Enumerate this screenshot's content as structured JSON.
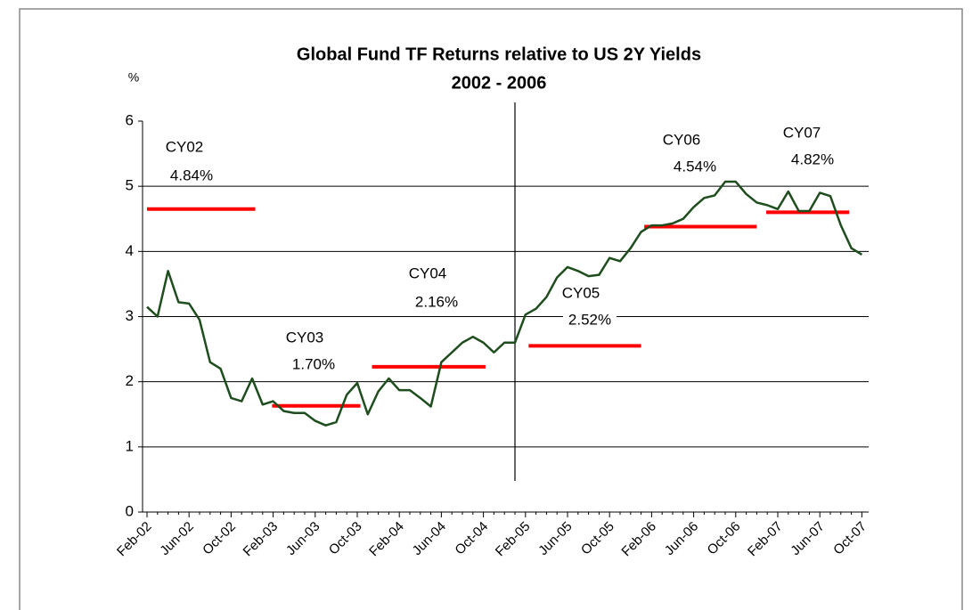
{
  "chart_data": {
    "type": "line",
    "title": "Global Fund TF Returns relative to US 2Y Yields",
    "subtitle": "2002 - 2006",
    "y_label": "%",
    "categories": [
      "Feb-02",
      null,
      null,
      null,
      "Jun-02",
      null,
      null,
      null,
      "Oct-02",
      null,
      null,
      null,
      "Feb-03",
      null,
      null,
      null,
      "Jun-03",
      null,
      null,
      null,
      "Oct-03",
      null,
      null,
      null,
      "Feb-04",
      null,
      null,
      null,
      "Jun-04",
      null,
      null,
      null,
      "Oct-04",
      null,
      null,
      null,
      "Feb-05",
      null,
      null,
      null,
      "Jun-05",
      null,
      null,
      null,
      "Oct-05",
      null,
      null,
      null,
      "Feb-06",
      null,
      null,
      null,
      "Jun-06",
      null,
      null,
      null,
      "Oct-06",
      null,
      null,
      null,
      "Feb-07",
      null,
      null,
      null,
      "Jun-07",
      null,
      null,
      null,
      "Oct-07"
    ],
    "values": [
      3.15,
      3.0,
      3.7,
      3.22,
      3.2,
      2.95,
      2.3,
      2.2,
      1.75,
      1.7,
      2.05,
      1.65,
      1.7,
      1.55,
      1.52,
      1.52,
      1.4,
      1.33,
      1.38,
      1.8,
      1.98,
      1.5,
      1.85,
      2.05,
      1.87,
      1.87,
      1.75,
      1.62,
      2.3,
      2.45,
      2.6,
      2.69,
      2.6,
      2.45,
      2.6,
      2.6,
      3.03,
      3.12,
      3.3,
      3.6,
      3.76,
      3.7,
      3.62,
      3.64,
      3.9,
      3.85,
      4.05,
      4.3,
      4.4,
      4.4,
      4.43,
      4.5,
      4.68,
      4.82,
      4.86,
      5.07,
      5.07,
      4.88,
      4.75,
      4.71,
      4.65,
      4.92,
      4.62,
      4.62,
      4.9,
      4.85,
      4.4,
      4.05,
      3.95
    ],
    "color": "#1e4d1e",
    "ylim": [
      0,
      6
    ],
    "yticks": [
      0,
      1,
      2,
      3,
      4,
      5,
      6
    ],
    "grid": true,
    "averages": {
      "color": "#ff0000",
      "bars": [
        {
          "span": [
            0,
            10.3
          ],
          "value": 4.65
        },
        {
          "span": [
            11.9,
            20.3
          ],
          "value": 1.63
        },
        {
          "span": [
            21.4,
            32.2
          ],
          "value": 2.23
        },
        {
          "span": [
            36.3,
            47
          ],
          "value": 2.55
        },
        {
          "span": [
            47.3,
            58
          ],
          "value": 4.38
        },
        {
          "span": [
            58.9,
            66.8
          ],
          "value": 4.6
        }
      ]
    },
    "annotations": [
      {
        "text": "CY02"
      },
      {
        "text": "4.84%"
      },
      {
        "text": "CY03"
      },
      {
        "text": "1.70%"
      },
      {
        "text": "CY04"
      },
      {
        "text": "2.16%"
      },
      {
        "text": "CY05"
      },
      {
        "text": "2.52%"
      },
      {
        "text": "CY06"
      },
      {
        "text": "4.54%"
      },
      {
        "text": "CY07"
      },
      {
        "text": "4.82%"
      }
    ]
  }
}
